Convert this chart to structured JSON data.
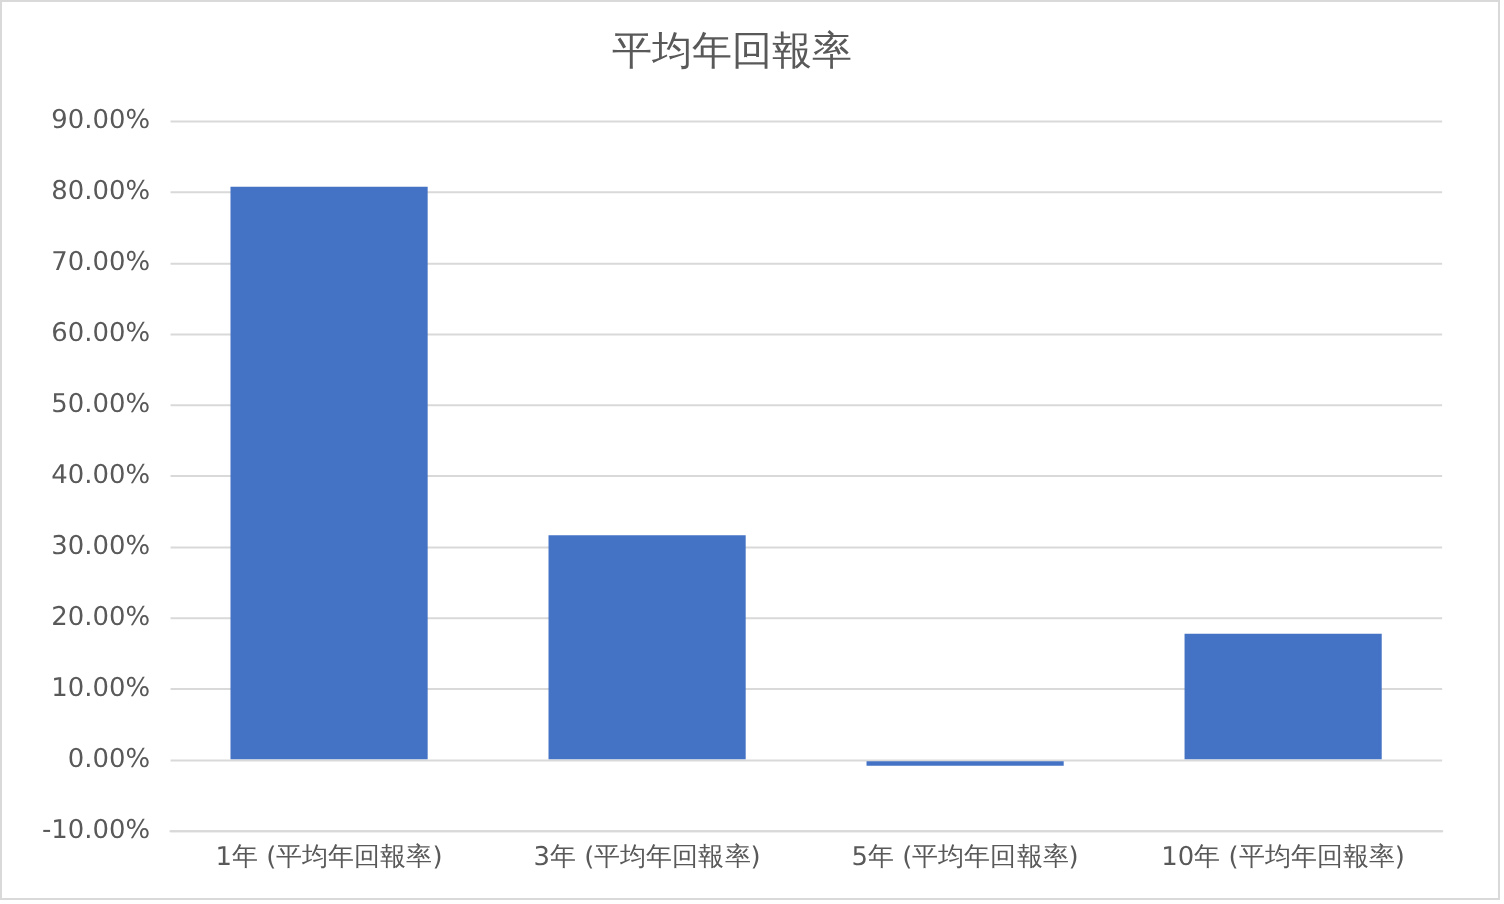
{
  "chart_data": {
    "type": "bar",
    "title": "平均年回報率",
    "categories": [
      "1年 (平均年回報率)",
      "3年 (平均年回報率)",
      "5年 (平均年回報率)",
      "10年 (平均年回報率)"
    ],
    "values": [
      80.8,
      31.7,
      -0.8,
      17.8
    ],
    "color": "#4472c4",
    "ylim": [
      -10,
      90
    ],
    "yticks": [
      {
        "value": -10,
        "label": "-10.00%"
      },
      {
        "value": 0,
        "label": "0.00%"
      },
      {
        "value": 10,
        "label": "10.00%"
      },
      {
        "value": 20,
        "label": "20.00%"
      },
      {
        "value": 30,
        "label": "30.00%"
      },
      {
        "value": 40,
        "label": "40.00%"
      },
      {
        "value": 50,
        "label": "50.00%"
      },
      {
        "value": 60,
        "label": "60.00%"
      },
      {
        "value": 70,
        "label": "70.00%"
      },
      {
        "value": 80,
        "label": "80.00%"
      },
      {
        "value": 90,
        "label": "90.00%"
      }
    ],
    "grid": "y",
    "legend": false
  }
}
